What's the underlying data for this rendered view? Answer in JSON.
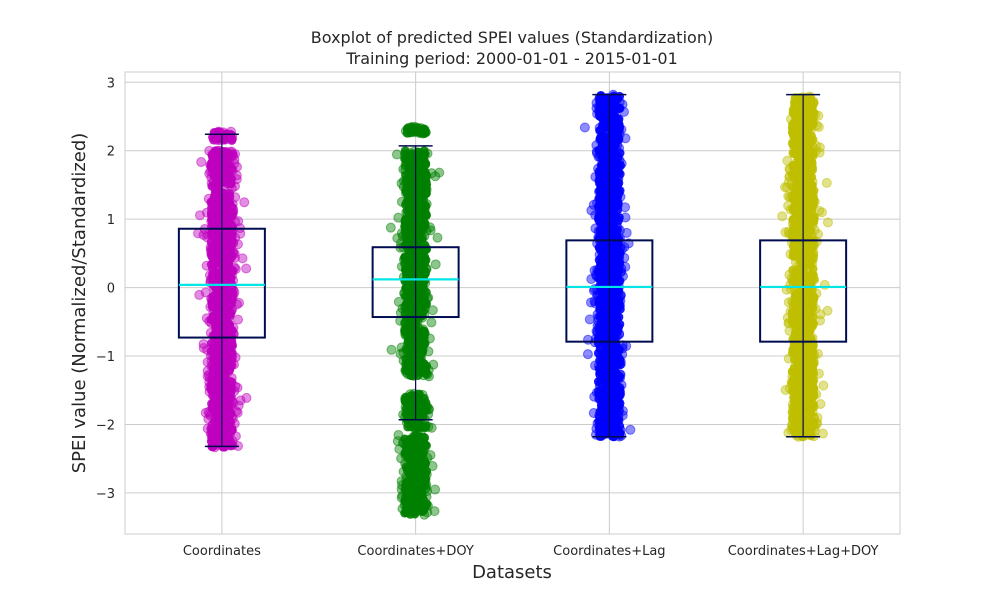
{
  "chart_data": {
    "type": "boxplot",
    "title": "Boxplot of predicted SPEI values (Standardization)",
    "subtitle": "Training period: 2000-01-01 - 2015-01-01",
    "xlabel": "Datasets",
    "ylabel": "SPEI value (Normalized/Standardized)",
    "ylim": [
      -3.6,
      3.15
    ],
    "yticks": [
      -3,
      -2,
      -1,
      0,
      1,
      2,
      3
    ],
    "grid": true,
    "categories": [
      "Coordinates",
      "Coordinates+DOY",
      "Coordinates+Lag",
      "Coordinates+Lag+DOY"
    ],
    "series": [
      {
        "color": "#bf00bf",
        "whisker_low": -2.32,
        "q1": -0.73,
        "median": 0.04,
        "q3": 0.86,
        "whisker_high": 2.24,
        "points_min": -2.34,
        "points_max": 2.28,
        "point_bands": [
          [
            -2.34,
            -1.1
          ],
          [
            -1.1,
            1.4
          ],
          [
            1.45,
            2.0
          ],
          [
            2.15,
            2.28
          ]
        ]
      },
      {
        "color": "#008000",
        "whisker_low": -1.93,
        "q1": -0.43,
        "median": 0.12,
        "q3": 0.59,
        "whisker_high": 2.07,
        "points_min": -3.32,
        "points_max": 2.35,
        "point_bands": [
          [
            -3.32,
            -2.15
          ],
          [
            -2.05,
            -1.55
          ],
          [
            -1.3,
            2.0
          ],
          [
            2.25,
            2.35
          ]
        ]
      },
      {
        "color": "#0000ff",
        "whisker_low": -2.18,
        "q1": -0.79,
        "median": 0.01,
        "q3": 0.69,
        "whisker_high": 2.82,
        "points_min": -2.18,
        "points_max": 2.82,
        "point_bands": [
          [
            -2.18,
            2.82
          ]
        ]
      },
      {
        "color": "#bfbf00",
        "whisker_low": -2.18,
        "q1": -0.79,
        "median": 0.01,
        "q3": 0.69,
        "whisker_high": 2.82,
        "points_min": -2.18,
        "points_max": 2.82,
        "point_bands": [
          [
            -2.18,
            2.82
          ]
        ]
      }
    ],
    "box_edge_color": "#000c50",
    "median_color": "#00e5e5"
  }
}
